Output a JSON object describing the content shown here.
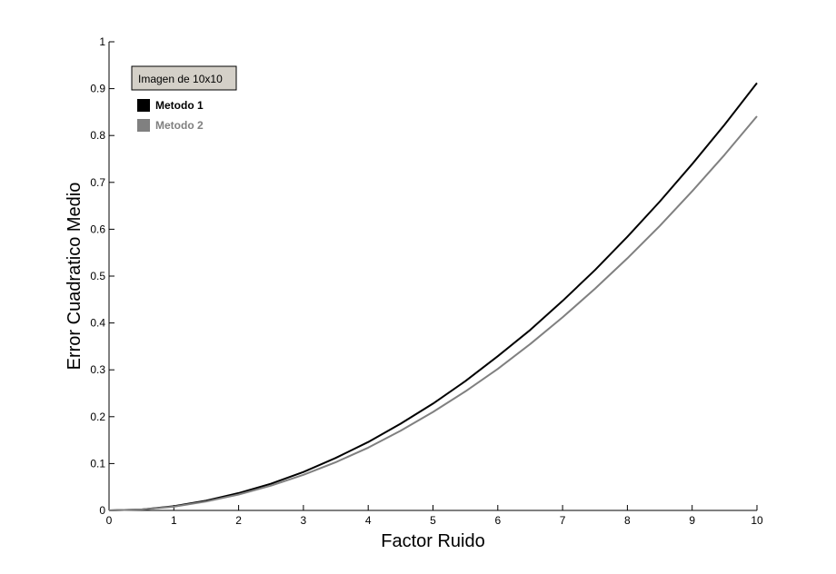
{
  "chart_data": {
    "type": "line",
    "xlabel": "Factor Ruido",
    "ylabel": "Error Cuadratico Medio",
    "xlim": [
      0,
      10
    ],
    "ylim": [
      0,
      1
    ],
    "x_ticks": [
      "0",
      "1",
      "2",
      "3",
      "4",
      "5",
      "6",
      "7",
      "8",
      "9",
      "10"
    ],
    "y_ticks": [
      "0",
      "0.1",
      "0.2",
      "0.3",
      "0.4",
      "0.5",
      "0.6",
      "0.7",
      "0.8",
      "0.9",
      "1"
    ],
    "grid": false,
    "legend_position": "top-left",
    "annotation": "Imagen de 10x10",
    "x": [
      0,
      0.5,
      1,
      1.5,
      2,
      2.5,
      3,
      3.5,
      4,
      4.5,
      5,
      5.5,
      6,
      6.5,
      7,
      7.5,
      8,
      8.5,
      9,
      9.5,
      10
    ],
    "series": [
      {
        "name": "Metodo 1",
        "color": "#000000",
        "values": [
          0,
          0.002,
          0.009,
          0.021,
          0.037,
          0.057,
          0.082,
          0.112,
          0.146,
          0.185,
          0.228,
          0.276,
          0.329,
          0.385,
          0.447,
          0.513,
          0.584,
          0.659,
          0.739,
          0.823,
          0.912
        ]
      },
      {
        "name": "Metodo 2",
        "color": "#808080",
        "values": [
          0,
          0.002,
          0.008,
          0.019,
          0.034,
          0.053,
          0.076,
          0.103,
          0.134,
          0.17,
          0.21,
          0.254,
          0.302,
          0.355,
          0.412,
          0.473,
          0.538,
          0.607,
          0.681,
          0.759,
          0.841
        ]
      }
    ]
  }
}
